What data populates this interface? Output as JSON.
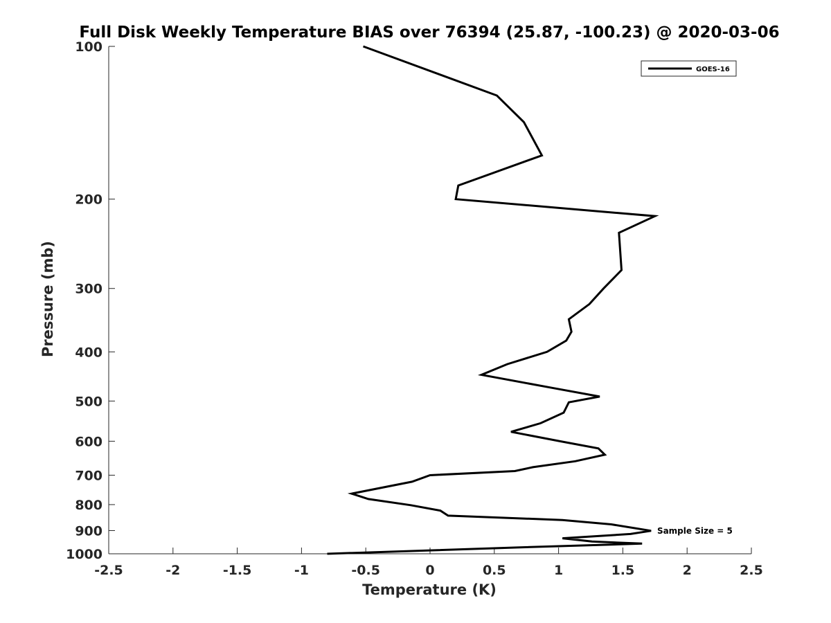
{
  "chart_data": {
    "type": "line",
    "title": "Full Disk Weekly Temperature BIAS over 76394 (25.87, -100.23) @ 2020-03-06",
    "xlabel": "Temperature (K)",
    "ylabel": "Pressure (mb)",
    "xlim": [
      -2.5,
      2.5
    ],
    "ylim": [
      1000,
      100
    ],
    "y_scale": "log",
    "y_reversed": true,
    "grid": false,
    "x_ticks": [
      -2.5,
      -2,
      -1.5,
      -1,
      -0.5,
      0,
      0.5,
      1,
      1.5,
      2,
      2.5
    ],
    "x_tick_labels": [
      "-2.5",
      "-2",
      "-1.5",
      "-1",
      "-0.5",
      "0",
      "0.5",
      "1",
      "1.5",
      "2",
      "2.5"
    ],
    "y_ticks": [
      100,
      200,
      300,
      400,
      500,
      600,
      700,
      800,
      900,
      1000
    ],
    "y_tick_labels": [
      "100",
      "200",
      "300",
      "400",
      "500",
      "600",
      "700",
      "800",
      "900",
      "1000"
    ],
    "legend": {
      "position": "top-right",
      "entries": [
        "GOES-16"
      ]
    },
    "series": [
      {
        "name": "GOES-16",
        "color": "#000000",
        "points": [
          {
            "t": -0.52,
            "p": 100
          },
          {
            "t": 0.52,
            "p": 125
          },
          {
            "t": 0.73,
            "p": 141
          },
          {
            "t": 0.87,
            "p": 164
          },
          {
            "t": 0.22,
            "p": 188
          },
          {
            "t": 0.2,
            "p": 200
          },
          {
            "t": 1.75,
            "p": 216
          },
          {
            "t": 1.47,
            "p": 233
          },
          {
            "t": 1.49,
            "p": 276
          },
          {
            "t": 1.35,
            "p": 300
          },
          {
            "t": 1.24,
            "p": 322
          },
          {
            "t": 1.08,
            "p": 345
          },
          {
            "t": 1.1,
            "p": 365
          },
          {
            "t": 1.06,
            "p": 380
          },
          {
            "t": 0.91,
            "p": 400
          },
          {
            "t": 0.6,
            "p": 423
          },
          {
            "t": 0.4,
            "p": 444
          },
          {
            "t": 0.95,
            "p": 471
          },
          {
            "t": 1.32,
            "p": 490
          },
          {
            "t": 1.08,
            "p": 503
          },
          {
            "t": 1.04,
            "p": 527
          },
          {
            "t": 0.86,
            "p": 553
          },
          {
            "t": 0.63,
            "p": 575
          },
          {
            "t": 1.01,
            "p": 600
          },
          {
            "t": 1.31,
            "p": 620
          },
          {
            "t": 1.36,
            "p": 638
          },
          {
            "t": 1.13,
            "p": 657
          },
          {
            "t": 0.8,
            "p": 675
          },
          {
            "t": 0.66,
            "p": 687
          },
          {
            "t": 0.0,
            "p": 700
          },
          {
            "t": -0.14,
            "p": 721
          },
          {
            "t": -0.61,
            "p": 761
          },
          {
            "t": -0.48,
            "p": 780
          },
          {
            "t": -0.15,
            "p": 802
          },
          {
            "t": 0.08,
            "p": 822
          },
          {
            "t": 0.14,
            "p": 841
          },
          {
            "t": 1.03,
            "p": 858
          },
          {
            "t": 1.41,
            "p": 875
          },
          {
            "t": 1.72,
            "p": 901
          },
          {
            "t": 1.56,
            "p": 914
          },
          {
            "t": 1.03,
            "p": 932
          },
          {
            "t": 1.26,
            "p": 946
          },
          {
            "t": 1.65,
            "p": 955
          },
          {
            "t": 0.66,
            "p": 972
          },
          {
            "t": -0.8,
            "p": 1000
          }
        ]
      }
    ],
    "annotations": [
      {
        "text": "Sample Size = 5",
        "t": 1.74,
        "p": 901
      }
    ]
  }
}
